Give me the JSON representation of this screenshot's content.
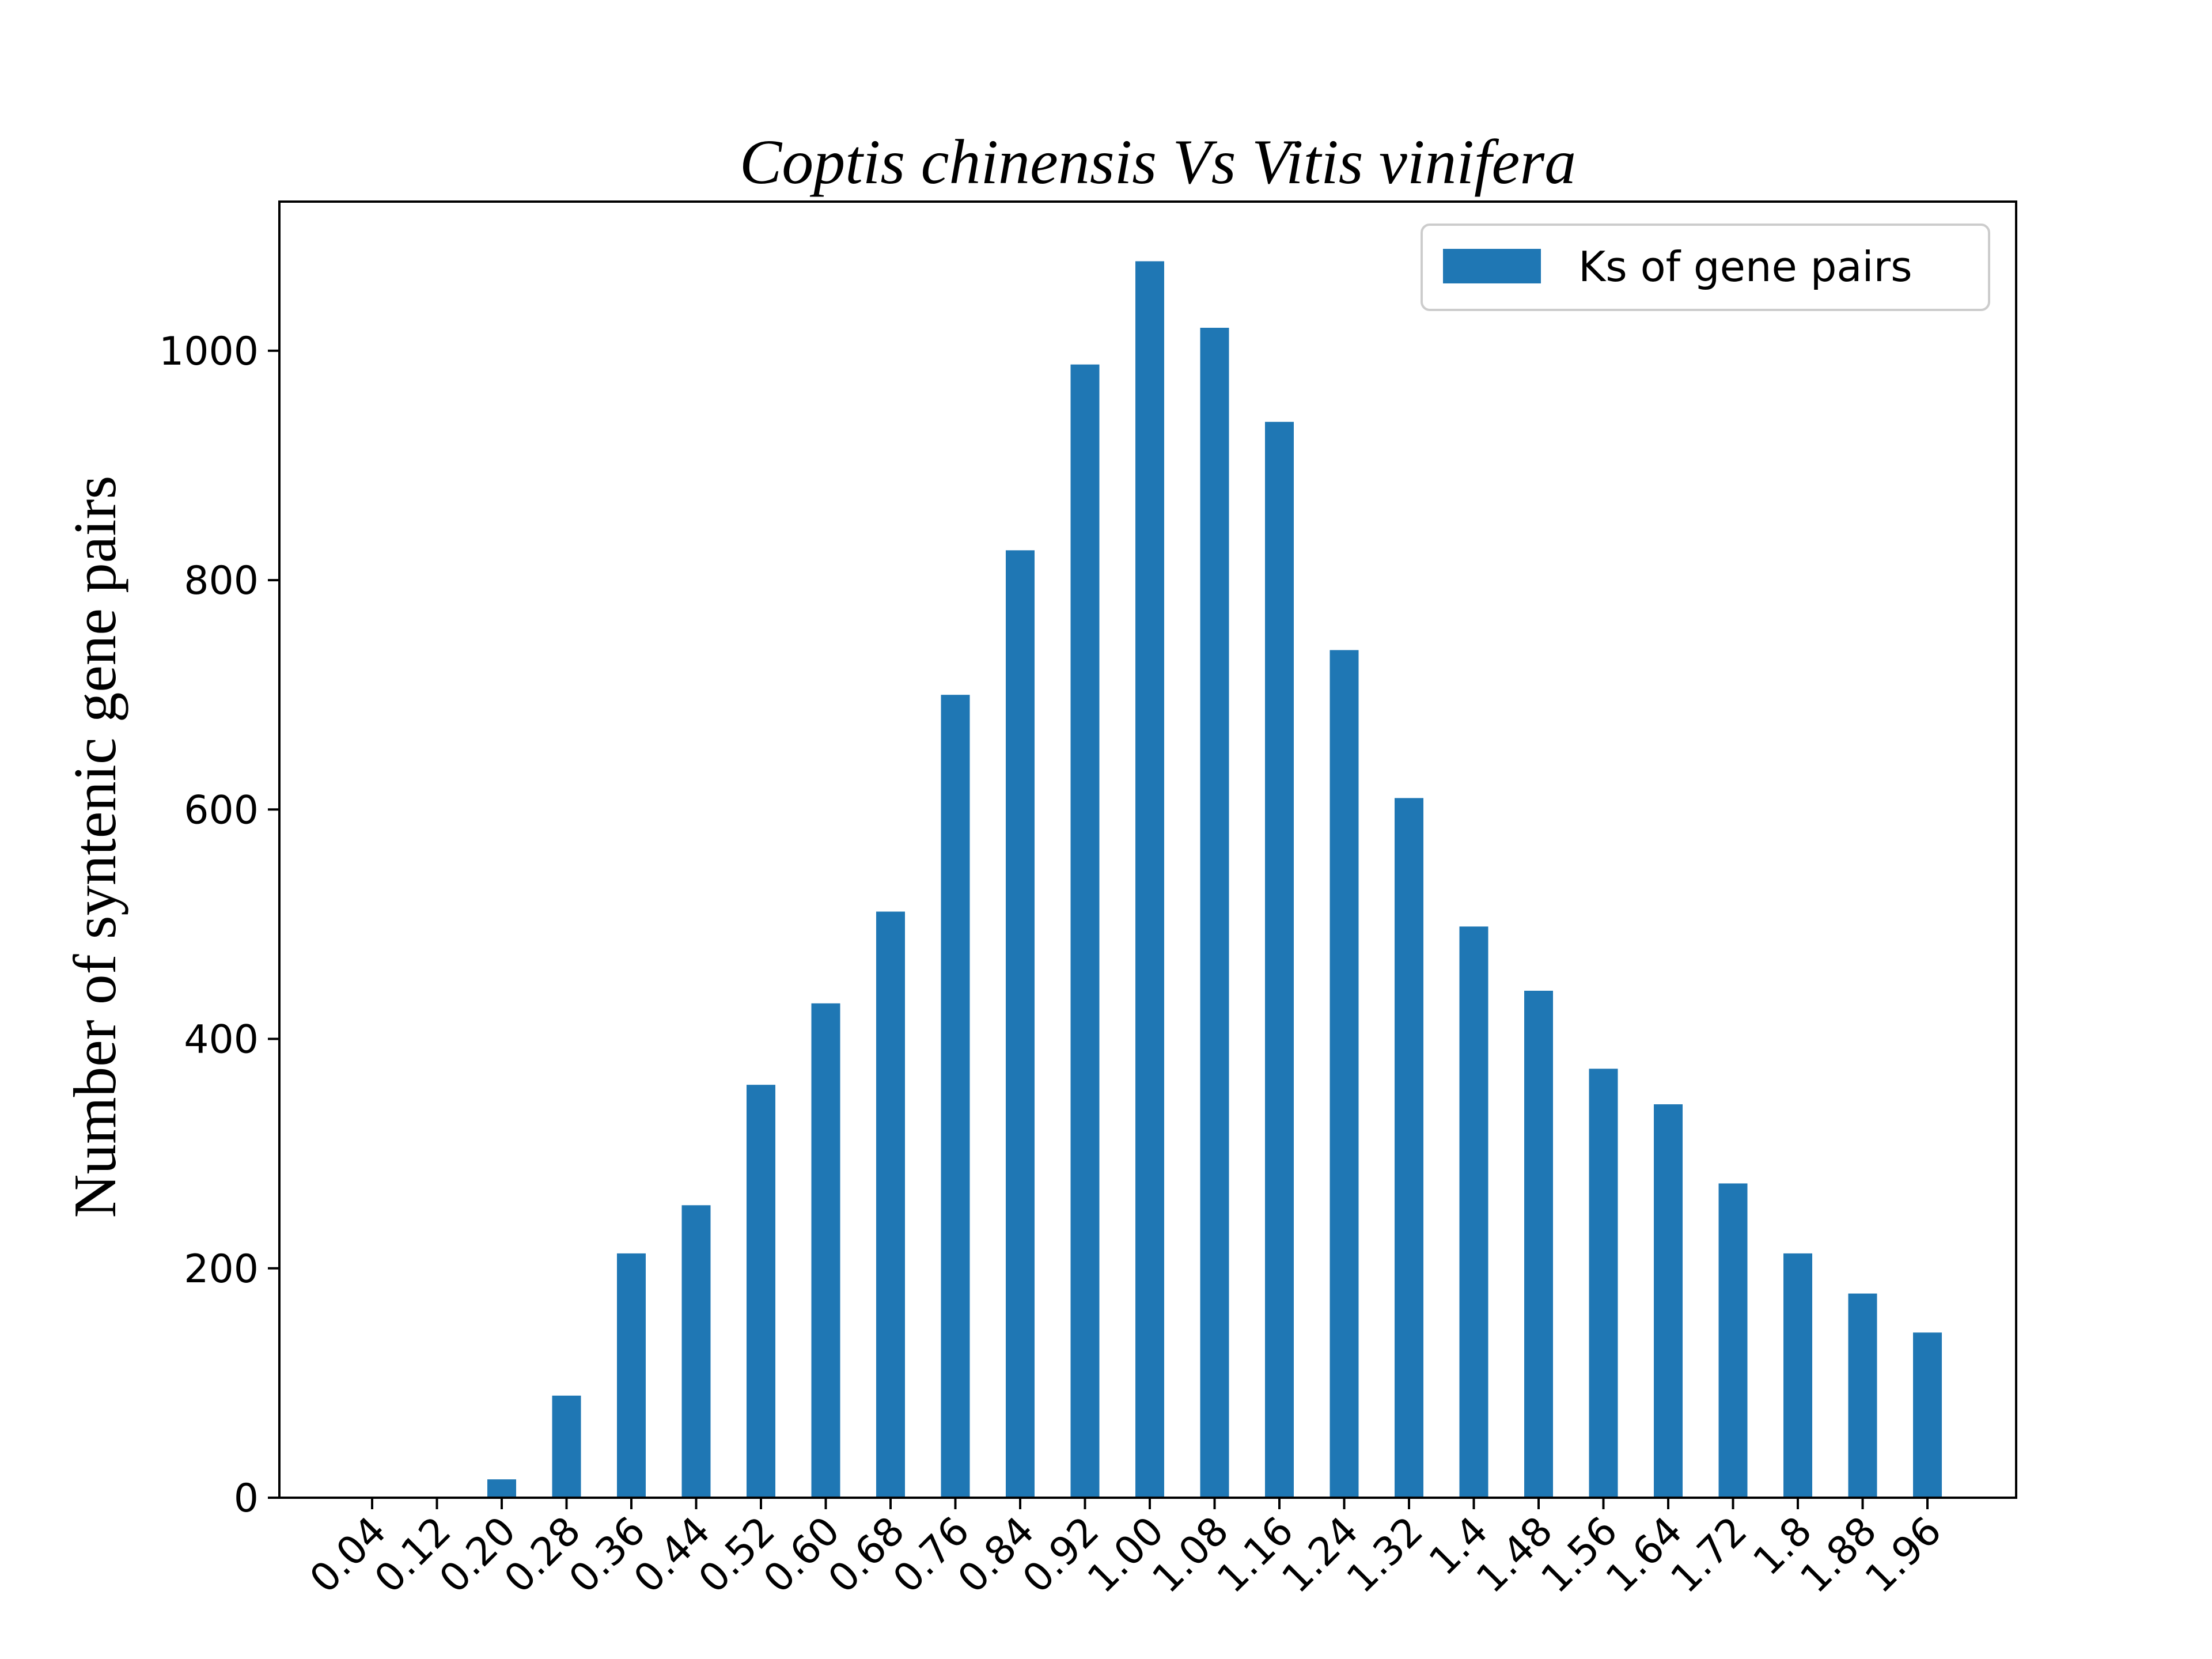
{
  "chart_data": {
    "type": "bar",
    "title": "Coptis chinensis Vs  Vitis vinifera",
    "xlabel": "",
    "ylabel": "Number of syntenic gene pairs",
    "categories": [
      "0.04",
      "0.12",
      "0.20",
      "0.28",
      "0.36",
      "0.44",
      "0.52",
      "0.60",
      "0.68",
      "0.76",
      "0.84",
      "0.92",
      "1.00",
      "1.08",
      "1.16",
      "1.24",
      "1.32",
      "1.4",
      "1.48",
      "1.56",
      "1.64",
      "1.72",
      "1.8",
      "1.88",
      "1.96"
    ],
    "series": [
      {
        "name": "Ks of gene pairs",
        "color": "#1f77b4",
        "values": [
          0,
          0,
          16,
          89,
          213,
          255,
          360,
          431,
          511,
          700,
          826,
          988,
          1078,
          1020,
          938,
          739,
          610,
          498,
          442,
          374,
          343,
          274,
          213,
          178,
          144
        ]
      }
    ],
    "ylim": [
      0,
      1130
    ],
    "yticks": [
      0,
      200,
      400,
      600,
      800,
      1000
    ],
    "grid": false,
    "legend_position": "top-right"
  }
}
